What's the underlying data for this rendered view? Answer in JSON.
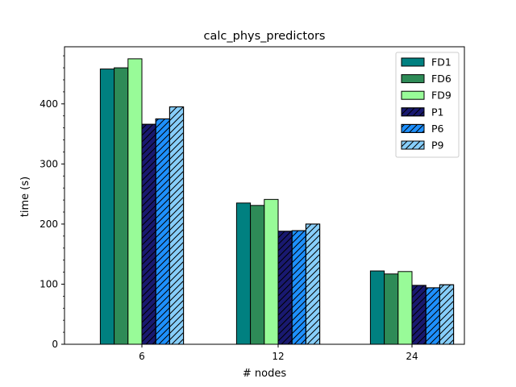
{
  "chart_data": {
    "type": "bar",
    "title": "calc_phys_predictors",
    "xlabel": "# nodes",
    "ylabel": "time (s)",
    "categories": [
      "6",
      "12",
      "24"
    ],
    "ylim": [
      0,
      495
    ],
    "yticks": [
      0,
      100,
      200,
      300,
      400
    ],
    "legend_position": "top-right",
    "grid": false,
    "series": [
      {
        "name": "FD1",
        "values": [
          458,
          235,
          122
        ],
        "color": "#008080",
        "hatch": false
      },
      {
        "name": "FD6",
        "values": [
          460,
          231,
          117
        ],
        "color": "#2e8b57",
        "hatch": false
      },
      {
        "name": "FD9",
        "values": [
          475,
          241,
          121
        ],
        "color": "#98fb98",
        "hatch": false
      },
      {
        "name": "P1",
        "values": [
          366,
          188,
          98
        ],
        "color": "#191970",
        "hatch": true
      },
      {
        "name": "P6",
        "values": [
          375,
          189,
          94
        ],
        "color": "#1e90ff",
        "hatch": true
      },
      {
        "name": "P9",
        "values": [
          395,
          200,
          99
        ],
        "color": "#87cefa",
        "hatch": true
      }
    ]
  }
}
